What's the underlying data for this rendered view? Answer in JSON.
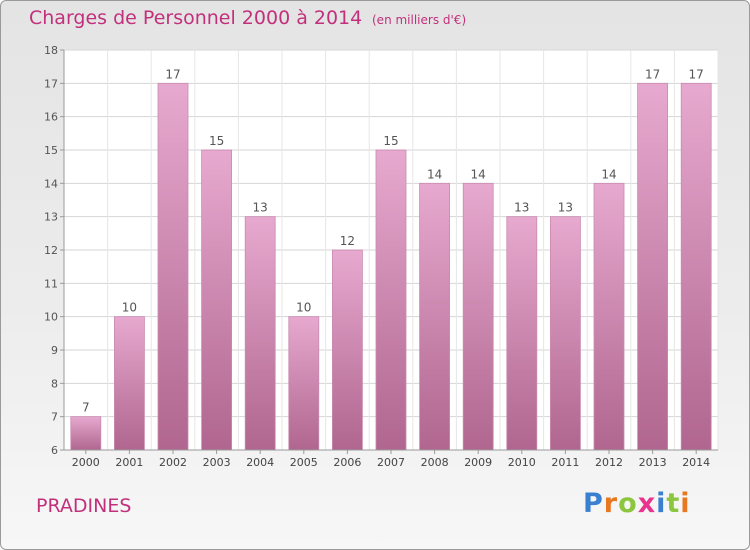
{
  "chart_data": {
    "type": "bar",
    "title": "Charges de Personnel 2000 à 2014",
    "subtitle": "(en milliers d'€)",
    "categories": [
      "2000",
      "2001",
      "2002",
      "2003",
      "2004",
      "2005",
      "2006",
      "2007",
      "2008",
      "2009",
      "2010",
      "2011",
      "2012",
      "2013",
      "2014"
    ],
    "values": [
      7,
      10,
      17,
      15,
      13,
      10,
      12,
      15,
      14,
      14,
      13,
      13,
      14,
      17,
      17
    ],
    "ylim": [
      6,
      18
    ],
    "yticks": [
      6,
      7,
      8,
      9,
      10,
      11,
      12,
      13,
      14,
      15,
      16,
      17,
      18
    ],
    "grid": true,
    "bar_color": "#d98bb9"
  },
  "footer": {
    "city": "PRADINES",
    "logo": {
      "letters": [
        "P",
        "r",
        "o",
        "x",
        "i",
        "t",
        "i"
      ],
      "colors": [
        "#3a7fd0",
        "#e87722",
        "#8cc63f",
        "#e8348f",
        "#3a7fd0",
        "#8cc63f",
        "#e87722"
      ]
    }
  }
}
